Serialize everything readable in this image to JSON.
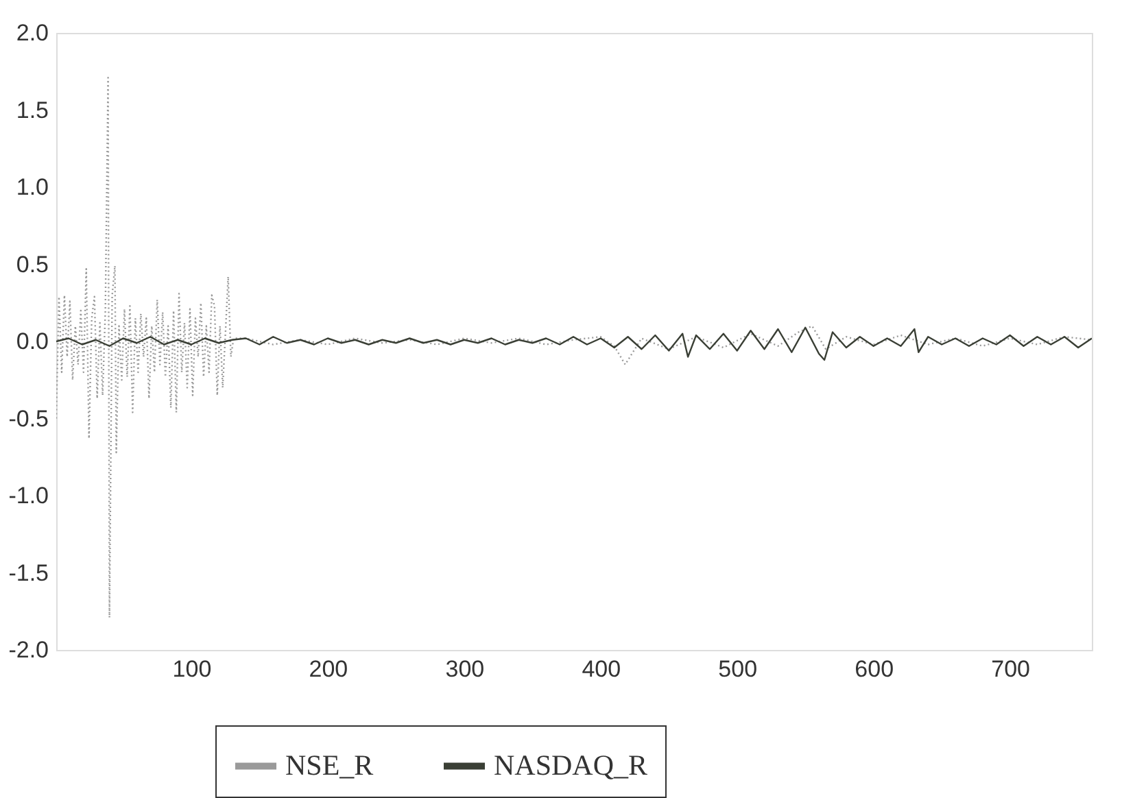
{
  "chart_data": {
    "type": "line",
    "xlim": [
      1,
      760
    ],
    "xticks": [
      100,
      200,
      300,
      400,
      500,
      600,
      700
    ],
    "ylim": [
      -2.0,
      2.0
    ],
    "yticks": [
      {
        "value": -2.0,
        "label": "-2.0"
      },
      {
        "value": -1.5,
        "label": "-1.5"
      },
      {
        "value": -1.0,
        "label": "-1.0"
      },
      {
        "value": -0.5,
        "label": "-0.5"
      },
      {
        "value": 0.0,
        "label": "0.0"
      },
      {
        "value": 0.5,
        "label": "0.5"
      },
      {
        "value": 1.0,
        "label": "1.0"
      },
      {
        "value": 1.5,
        "label": "1.5"
      },
      {
        "value": 2.0,
        "label": "2.0"
      }
    ],
    "grid": false,
    "legend": "bottom",
    "marker": "none",
    "series": [
      {
        "name": "NSE_R",
        "color": "#9a9a9a",
        "line_style": "dotted",
        "x": [
          1,
          3,
          5,
          7,
          9,
          11,
          13,
          15,
          17,
          19,
          21,
          23,
          25,
          27,
          29,
          31,
          33,
          35,
          37,
          39,
          40,
          42,
          44,
          45,
          47,
          49,
          51,
          53,
          55,
          57,
          59,
          61,
          63,
          65,
          67,
          69,
          71,
          73,
          75,
          77,
          79,
          81,
          83,
          85,
          87,
          89,
          91,
          93,
          95,
          97,
          99,
          101,
          103,
          105,
          107,
          109,
          111,
          113,
          115,
          117,
          119,
          121,
          123,
          125,
          127,
          129,
          131,
          140,
          160,
          180,
          200,
          220,
          240,
          260,
          280,
          300,
          320,
          340,
          360,
          380,
          400,
          410,
          418,
          430,
          450,
          470,
          490,
          510,
          530,
          545,
          555,
          565,
          580,
          600,
          620,
          640,
          660,
          680,
          700,
          720,
          740,
          760
        ],
        "values": [
          -0.5,
          0.29,
          -0.2,
          0.3,
          -0.1,
          0.26,
          -0.25,
          0.1,
          -0.15,
          0.2,
          -0.2,
          0.47,
          -0.63,
          0.15,
          0.29,
          -0.37,
          0.12,
          -0.35,
          0.2,
          1.71,
          -1.79,
          0.3,
          0.49,
          -0.72,
          0.1,
          -0.25,
          0.21,
          -0.23,
          0.23,
          -0.46,
          0.15,
          -0.2,
          0.18,
          -0.1,
          0.15,
          -0.37,
          0.1,
          -0.2,
          0.27,
          -0.15,
          0.19,
          -0.23,
          0.1,
          -0.43,
          0.2,
          -0.46,
          0.31,
          -0.2,
          0.12,
          -0.3,
          0.21,
          -0.35,
          0.15,
          -0.1,
          0.25,
          -0.23,
          0.1,
          -0.2,
          0.3,
          0.23,
          -0.35,
          0.1,
          -0.3,
          0.05,
          0.42,
          -0.1,
          0.02,
          0.02,
          -0.02,
          0.01,
          -0.02,
          0.02,
          -0.01,
          0.01,
          -0.02,
          0.02,
          -0.01,
          0.02,
          -0.02,
          0.01,
          0.03,
          -0.03,
          -0.15,
          0.02,
          -0.05,
          0.03,
          -0.04,
          0.05,
          -0.03,
          0.06,
          0.1,
          -0.05,
          0.03,
          -0.02,
          0.04,
          -0.02,
          0.02,
          -0.03,
          0.02,
          -0.02,
          0.03,
          0.01
        ]
      },
      {
        "name": "NASDAQ_R",
        "color": "#3a3f35",
        "line_style": "solid",
        "x": [
          1,
          10,
          20,
          30,
          40,
          50,
          60,
          70,
          80,
          90,
          100,
          110,
          120,
          130,
          140,
          150,
          160,
          170,
          180,
          190,
          200,
          210,
          220,
          230,
          240,
          250,
          260,
          270,
          280,
          290,
          300,
          310,
          320,
          330,
          340,
          350,
          360,
          370,
          380,
          390,
          400,
          410,
          420,
          430,
          440,
          450,
          460,
          464,
          470,
          480,
          490,
          500,
          510,
          520,
          530,
          540,
          550,
          560,
          564,
          570,
          580,
          590,
          600,
          610,
          620,
          630,
          633,
          640,
          650,
          660,
          670,
          680,
          690,
          700,
          710,
          720,
          730,
          740,
          750,
          760
        ],
        "values": [
          0.0,
          0.02,
          -0.02,
          0.01,
          -0.03,
          0.02,
          -0.01,
          0.03,
          -0.02,
          0.01,
          -0.02,
          0.02,
          -0.01,
          0.01,
          0.02,
          -0.02,
          0.03,
          -0.01,
          0.01,
          -0.02,
          0.02,
          -0.01,
          0.01,
          -0.02,
          0.01,
          -0.01,
          0.02,
          -0.01,
          0.01,
          -0.02,
          0.01,
          -0.01,
          0.02,
          -0.02,
          0.01,
          -0.01,
          0.02,
          -0.02,
          0.03,
          -0.02,
          0.02,
          -0.04,
          0.03,
          -0.05,
          0.04,
          -0.06,
          0.05,
          -0.1,
          0.04,
          -0.05,
          0.05,
          -0.06,
          0.07,
          -0.05,
          0.08,
          -0.07,
          0.09,
          -0.08,
          -0.12,
          0.06,
          -0.04,
          0.03,
          -0.03,
          0.02,
          -0.03,
          0.08,
          -0.07,
          0.03,
          -0.02,
          0.02,
          -0.03,
          0.02,
          -0.02,
          0.04,
          -0.03,
          0.03,
          -0.02,
          0.03,
          -0.04,
          0.02
        ]
      }
    ]
  }
}
